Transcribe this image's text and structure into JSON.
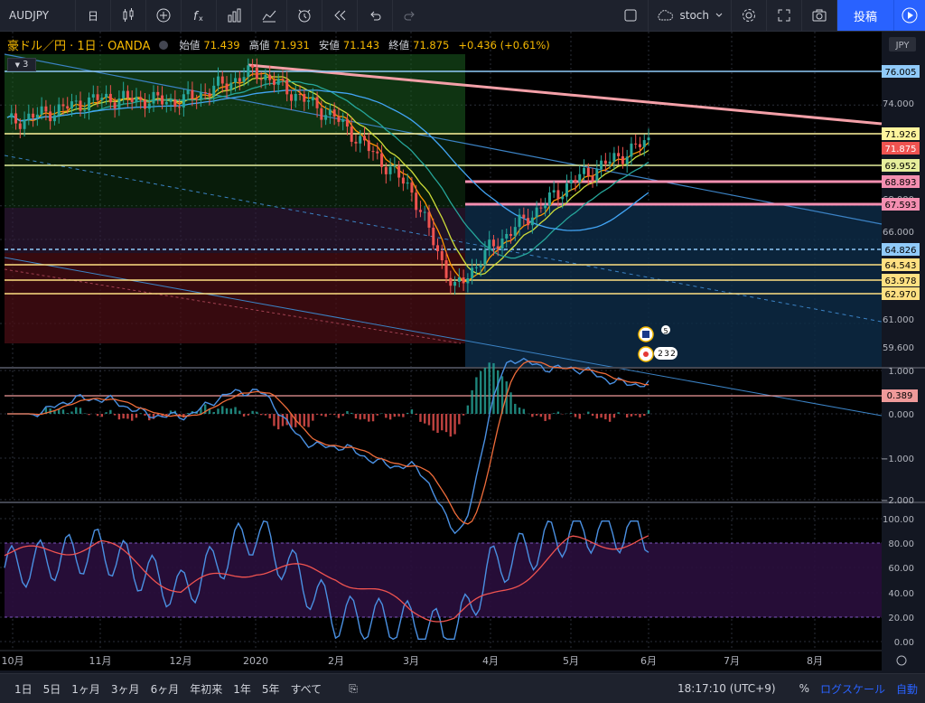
{
  "toolbar": {
    "symbol": "AUDJPY",
    "interval": "日",
    "indicator_search": "stoch",
    "post_label": "投稿"
  },
  "legend": {
    "title": "豪ドル／円 · 1日 · OANDA",
    "open_label": "始値",
    "open": "71.439",
    "high_label": "高値",
    "high": "71.931",
    "low_label": "安値",
    "low": "71.143",
    "close_label": "終値",
    "close": "71.875",
    "change": "+0.436 (+0.61%)",
    "collapse_count": "3"
  },
  "price_axis": {
    "currency": "JPY",
    "ticks": [
      "74.000",
      "68.000",
      "66.000",
      "61.000",
      "59.600"
    ],
    "badges": [
      {
        "text": "76.005",
        "color": "#90caf9"
      },
      {
        "text": "71.926",
        "color": "#fff59d"
      },
      {
        "text": "71.875",
        "color": "#ef5350"
      },
      {
        "text": "69.952",
        "color": "#e6ee9c"
      },
      {
        "text": "68.893",
        "color": "#f48fb1"
      },
      {
        "text": "67.593",
        "color": "#f48fb1"
      },
      {
        "text": "64.826",
        "color": "#90caf9"
      },
      {
        "text": "64.543",
        "color": "#ffe082"
      },
      {
        "text": "63.978",
        "color": "#ffe082"
      },
      {
        "text": "62.970",
        "color": "#ffe082"
      }
    ]
  },
  "macd_axis": {
    "ticks": [
      "1.000",
      "0.000",
      "-1.000",
      "-2.000"
    ],
    "badge": "0.389"
  },
  "stoch_axis": {
    "ticks": [
      "100.00",
      "80.00",
      "60.00",
      "40.00",
      "20.00",
      "0.00"
    ]
  },
  "time_axis": [
    "10月",
    "11月",
    "12月",
    "2020",
    "2月",
    "3月",
    "4月",
    "5月",
    "6月",
    "7月",
    "8月"
  ],
  "events": {
    "a": "5",
    "b": "2",
    "c": "3",
    "d": "2"
  },
  "bottom_bar": {
    "ranges": [
      "1日",
      "5日",
      "1ヶ月",
      "3ヶ月",
      "6ヶ月",
      "年初来",
      "1年",
      "5年",
      "すべて"
    ],
    "time": "18:17:10 (UTC+9)",
    "percent": "%",
    "log_scale": "ログスケール",
    "auto": "自動"
  },
  "chart_data": {
    "type": "candlestick",
    "symbol": "AUDJPY",
    "title": "豪ドル／円 · 1日 · OANDA",
    "x": [
      "10月",
      "11月",
      "12月",
      "2020",
      "2月",
      "3月",
      "4月",
      "5月",
      "6月",
      "7月",
      "8月"
    ],
    "ylim": [
      59.6,
      77.0
    ],
    "close_path": [
      {
        "x": "10月",
        "y": 73.0
      },
      {
        "x": "11月",
        "y": 74.4
      },
      {
        "x": "12月",
        "y": 74.2
      },
      {
        "x": "2020",
        "y": 76.005
      },
      {
        "x": "2月",
        "y": 73.2
      },
      {
        "x": "3月",
        "y": 69.0
      },
      {
        "x": "3月中旬",
        "y": 62.97
      },
      {
        "x": "4月",
        "y": 65.5
      },
      {
        "x": "5月",
        "y": 69.4
      },
      {
        "x": "6月",
        "y": 71.875
      }
    ],
    "horizontal_levels": [
      76.005,
      71.926,
      69.952,
      68.893,
      67.593,
      64.826,
      64.543,
      63.978,
      62.97
    ],
    "ohlc_last": {
      "open": 71.439,
      "high": 71.931,
      "low": 71.143,
      "close": 71.875
    },
    "macd_last": 0.389,
    "macd_ylim": [
      -2.0,
      1.0
    ],
    "stoch_ylim": [
      0,
      100
    ],
    "stoch_band": [
      20,
      80
    ],
    "stoch_path": [
      {
        "x": "10月",
        "k": 60,
        "d": 70
      },
      {
        "x": "11月",
        "k": 75,
        "d": 80
      },
      {
        "x": "12月",
        "k": 40,
        "d": 42
      },
      {
        "x": "2020",
        "k": 90,
        "d": 60
      },
      {
        "x": "2月",
        "k": 20,
        "d": 55
      },
      {
        "x": "3月",
        "k": 15,
        "d": 25
      },
      {
        "x": "3月中旬",
        "k": 5,
        "d": 20
      },
      {
        "x": "4月",
        "k": 60,
        "d": 35
      },
      {
        "x": "5月",
        "k": 90,
        "d": 80
      },
      {
        "x": "6月",
        "k": 90,
        "d": 82
      }
    ]
  }
}
